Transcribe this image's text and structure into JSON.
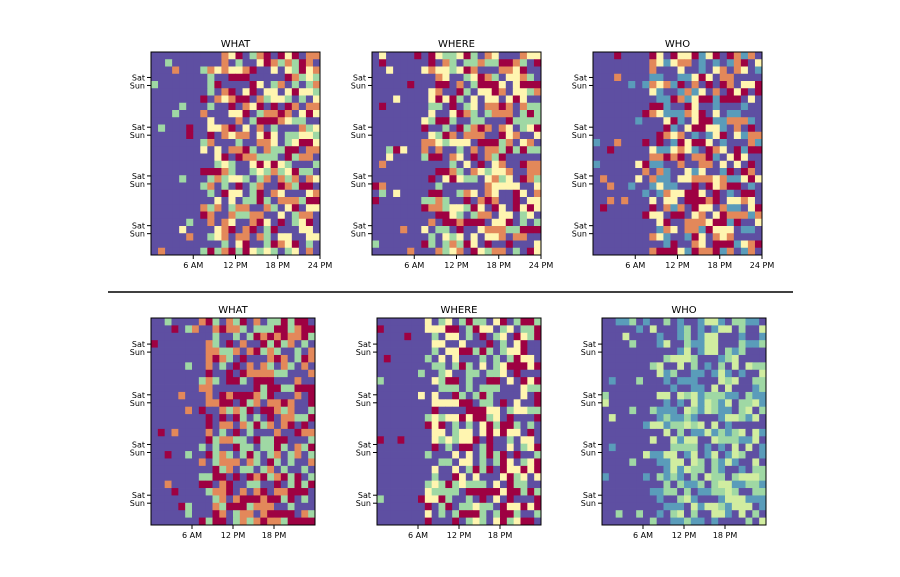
{
  "palette": {
    "dark_red": "#9e0142",
    "orange": "#e3885a",
    "light_yellow": "#fff5b0",
    "pale_green": "#9fd8a4",
    "teal_blue": "#5a9cba",
    "purple": "#5e4fa2",
    "green_yellow": "#d1eda0"
  },
  "chart_data": [
    {
      "type": "heatmap",
      "title": "WHAT",
      "panel": "top",
      "x_ticks": [
        "6 AM",
        "12 PM",
        "18 PM",
        "24 PM"
      ],
      "y_ticks": [
        "Sat",
        "Sun",
        "Sat",
        "Sun",
        "Sat",
        "Sun",
        "Sat",
        "Sun"
      ],
      "rows": 28,
      "cols": 24,
      "colors": [
        "#5e4fa2",
        "#9fd8a4",
        "#fff5b0",
        "#e3885a",
        "#9e0142"
      ],
      "grid": false
    },
    {
      "type": "heatmap",
      "title": "WHERE",
      "panel": "top",
      "x_ticks": [
        "6 AM",
        "12 PM",
        "18 PM",
        "24 PM"
      ],
      "y_ticks": [
        "Sat",
        "Sun",
        "Sat",
        "Sun",
        "Sat",
        "Sun",
        "Sat",
        "Sun"
      ],
      "rows": 28,
      "cols": 24,
      "colors": [
        "#5e4fa2",
        "#9fd8a4",
        "#fff5b0",
        "#e3885a",
        "#9e0142"
      ],
      "grid": false
    },
    {
      "type": "heatmap",
      "title": "WHO",
      "panel": "top",
      "x_ticks": [
        "6 AM",
        "12 PM",
        "18 PM",
        "24 PM"
      ],
      "y_ticks": [
        "Sat",
        "Sun",
        "Sat",
        "Sun",
        "Sat",
        "Sun",
        "Sat",
        "Sun"
      ],
      "rows": 28,
      "cols": 24,
      "colors": [
        "#5e4fa2",
        "#5a9cba",
        "#fff5b0",
        "#e3885a",
        "#9e0142"
      ],
      "grid": false
    },
    {
      "type": "heatmap",
      "title": "WHAT",
      "panel": "bottom",
      "x_ticks": [
        "6 AM",
        "12 PM",
        "18 PM"
      ],
      "y_ticks": [
        "Sat",
        "Sun",
        "Sat",
        "Sun",
        "Sat",
        "Sun",
        "Sat",
        "Sun"
      ],
      "rows": 28,
      "cols": 24,
      "colors": [
        "#5e4fa2",
        "#e3885a",
        "#9fd8a4",
        "#9e0142"
      ],
      "grid": false
    },
    {
      "type": "heatmap",
      "title": "WHERE",
      "panel": "bottom",
      "x_ticks": [
        "6 AM",
        "12 PM",
        "18 PM"
      ],
      "y_ticks": [
        "Sat",
        "Sun",
        "Sat",
        "Sun",
        "Sat",
        "Sun",
        "Sat",
        "Sun"
      ],
      "rows": 28,
      "cols": 24,
      "colors": [
        "#5e4fa2",
        "#9fd8a4",
        "#fff5b0",
        "#9e0142"
      ],
      "grid": false
    },
    {
      "type": "heatmap",
      "title": "WHO",
      "panel": "bottom",
      "x_ticks": [
        "6 AM",
        "12 PM",
        "18 PM"
      ],
      "y_ticks": [
        "Sat",
        "Sun",
        "Sat",
        "Sun",
        "Sat",
        "Sun",
        "Sat",
        "Sun"
      ],
      "rows": 28,
      "cols": 24,
      "colors": [
        "#5e4fa2",
        "#5a9cba",
        "#d1eda0",
        "#9fd8a4"
      ],
      "grid": false
    }
  ]
}
